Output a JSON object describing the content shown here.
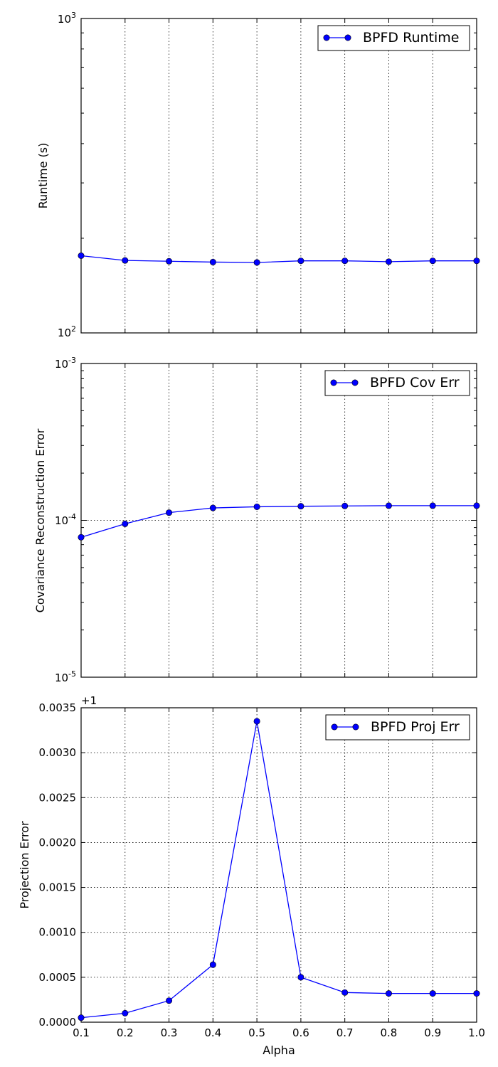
{
  "chart_data": [
    {
      "type": "line",
      "x": [
        0.1,
        0.2,
        0.3,
        0.4,
        0.5,
        0.6,
        0.7,
        0.8,
        0.9,
        1.0
      ],
      "series": [
        {
          "name": "BPFD Runtime",
          "values": [
            176,
            170,
            169,
            168,
            167.5,
            169.5,
            169.5,
            168.5,
            169.5,
            169.5
          ],
          "color": "#0000ff"
        }
      ],
      "xlabel": "",
      "ylabel": "Runtime (s)",
      "yscale": "log",
      "xlim": [
        0.1,
        1.0
      ],
      "ylim": [
        100,
        1000
      ],
      "ytick_labels": [
        {
          "base": "10",
          "exp": "3"
        },
        {
          "base": "10",
          "exp": "2"
        }
      ],
      "grid": true,
      "legend": "top-right"
    },
    {
      "type": "line",
      "x": [
        0.1,
        0.2,
        0.3,
        0.4,
        0.5,
        0.6,
        0.7,
        0.8,
        0.9,
        1.0
      ],
      "series": [
        {
          "name": "BPFD Cov Err",
          "values": [
            7.8e-05,
            9.5e-05,
            0.000112,
            0.00012,
            0.000122,
            0.000123,
            0.0001235,
            0.000124,
            0.000124,
            0.000124
          ],
          "color": "#0000ff"
        }
      ],
      "xlabel": "",
      "ylabel": "Covariance Reconstruction Error",
      "yscale": "log",
      "xlim": [
        0.1,
        1.0
      ],
      "ylim": [
        1e-05,
        0.001
      ],
      "ytick_labels": [
        {
          "base": "10",
          "exp": "-3"
        },
        {
          "base": "10",
          "exp": "-4"
        },
        {
          "base": "10",
          "exp": "-5"
        }
      ],
      "grid": true,
      "legend": "top-right"
    },
    {
      "type": "line",
      "x": [
        0.1,
        0.2,
        0.3,
        0.4,
        0.5,
        0.6,
        0.7,
        0.8,
        0.9,
        1.0
      ],
      "series": [
        {
          "name": "BPFD Proj Err",
          "values": [
            5e-05,
            0.0001,
            0.00024,
            0.00064,
            0.00335,
            0.0005,
            0.00033,
            0.00032,
            0.00032,
            0.00032
          ],
          "color": "#0000ff"
        }
      ],
      "xlabel": "Alpha",
      "ylabel": "Projection Error",
      "yscale": "linear",
      "offset_label": "+1",
      "xlim": [
        0.1,
        1.0
      ],
      "ylim": [
        0.0,
        0.0035
      ],
      "xtick_labels": [
        "0.1",
        "0.2",
        "0.3",
        "0.4",
        "0.5",
        "0.6",
        "0.7",
        "0.8",
        "0.9",
        "1.0"
      ],
      "ytick_labels": [
        "0.0035",
        "0.0030",
        "0.0025",
        "0.0020",
        "0.0015",
        "0.0010",
        "0.0005",
        "0.0000"
      ],
      "grid": true,
      "legend": "top-right"
    }
  ]
}
